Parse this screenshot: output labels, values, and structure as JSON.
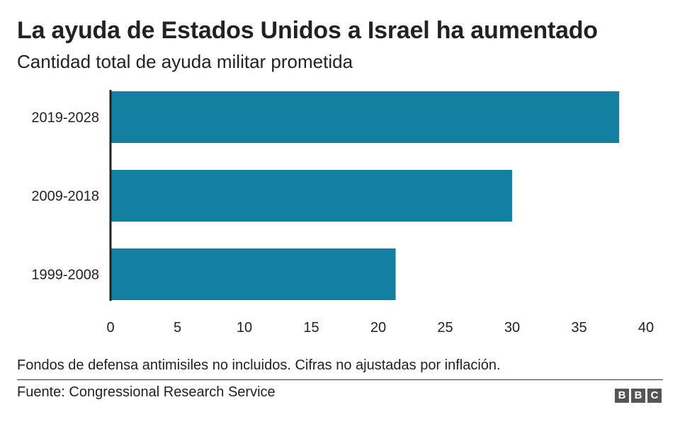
{
  "header": {
    "title": "La ayuda de Estados Unidos a Israel ha aumentado",
    "subtitle": "Cantidad total de ayuda militar prometida"
  },
  "chart_data": {
    "type": "bar",
    "orientation": "horizontal",
    "categories": [
      "2019-2028",
      "2009-2018",
      "1999-2008"
    ],
    "values": [
      38,
      30,
      21.3
    ],
    "xticks": [
      "0",
      "5",
      "10",
      "15",
      "20",
      "25",
      "30",
      "35",
      "40"
    ],
    "xlim": [
      0,
      40
    ],
    "bar_color": "#1380a1",
    "grid": false,
    "legend": "none"
  },
  "footer": {
    "note": "Fondos de defensa antimisiles no incluidos. Cifras no ajustadas por inflación.",
    "source": "Fuente: Congressional Research Service",
    "logo": [
      "B",
      "B",
      "C"
    ]
  }
}
